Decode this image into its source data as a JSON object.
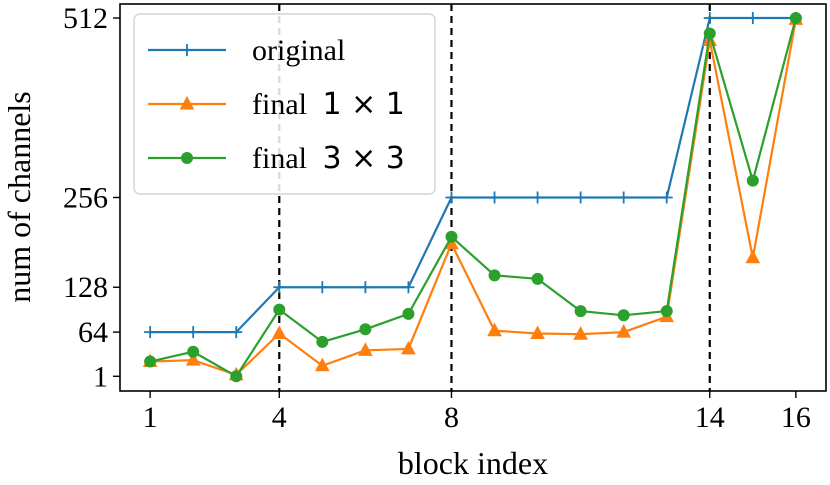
{
  "chart_data": {
    "type": "line",
    "xlabel": "block index",
    "ylabel": "num of channels",
    "xlim": [
      0.3,
      16.7
    ],
    "ylim": [
      -20,
      532
    ],
    "xticks": [
      1,
      4,
      8,
      14,
      16
    ],
    "yticks": [
      1,
      64,
      128,
      256,
      512
    ],
    "vlines": [
      4,
      8,
      14
    ],
    "grid": false,
    "legend_position": "top-left",
    "series": [
      {
        "name": "original",
        "color": "#1f77b4",
        "marker": "plus",
        "x": [
          1,
          2,
          3,
          4,
          5,
          6,
          7,
          8,
          9,
          10,
          11,
          12,
          13,
          14,
          15,
          16
        ],
        "y": [
          64,
          64,
          64,
          128,
          128,
          128,
          128,
          256,
          256,
          256,
          256,
          256,
          256,
          512,
          512,
          512
        ]
      },
      {
        "name": "final 1 × 1",
        "color": "#ff7f0e",
        "marker": "triangle",
        "x": [
          1,
          2,
          3,
          4,
          5,
          6,
          7,
          8,
          9,
          10,
          11,
          12,
          13,
          14,
          15,
          16
        ],
        "y": [
          22,
          24,
          3,
          62,
          16,
          38,
          40,
          190,
          66,
          62,
          61,
          64,
          86,
          480,
          170,
          510
        ]
      },
      {
        "name": "final 3 × 3",
        "color": "#2ca02c",
        "marker": "circle",
        "x": [
          1,
          2,
          3,
          4,
          5,
          6,
          7,
          8,
          9,
          10,
          11,
          12,
          13,
          14,
          15,
          16
        ],
        "y": [
          22,
          36,
          1,
          96,
          50,
          68,
          90,
          200,
          145,
          140,
          94,
          88,
          94,
          490,
          280,
          512
        ]
      }
    ]
  },
  "legend": {
    "original_label": "original",
    "final1_prefix": "final",
    "final1_math": "1 × 1",
    "final3_prefix": "final",
    "final3_math": "3 × 3"
  }
}
